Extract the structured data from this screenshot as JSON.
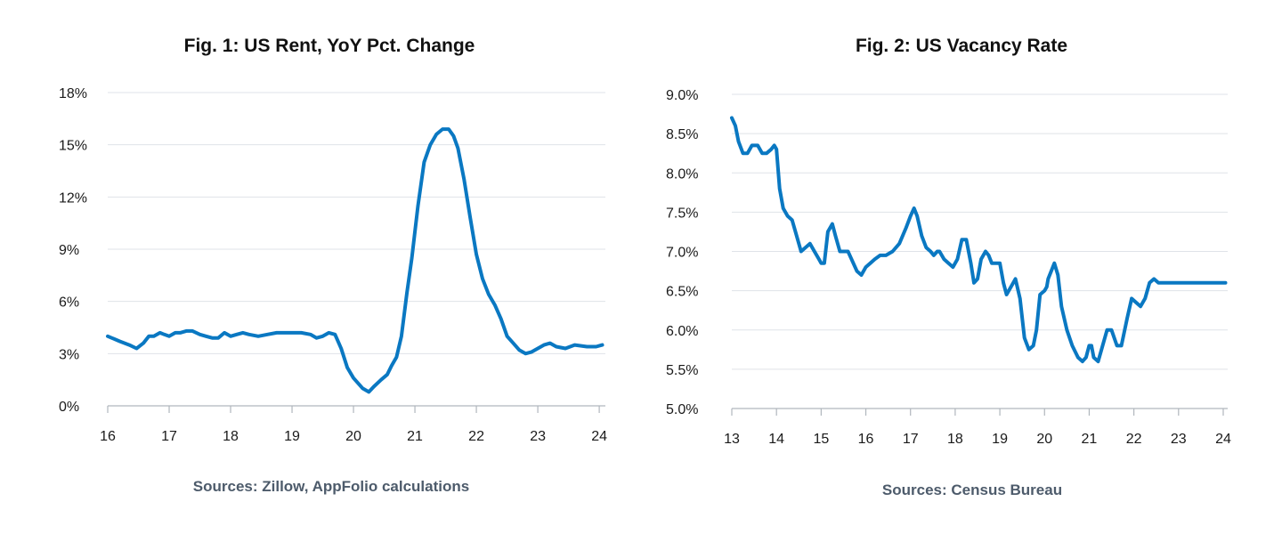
{
  "colors": {
    "line": "#0a78c2",
    "grid": "#dfe3e8",
    "axis": "#b0b6bd"
  },
  "chart_data": [
    {
      "type": "line",
      "title": "Fig. 1: US Rent, YoY Pct. Change",
      "source": "Sources: Zillow, AppFolio calculations",
      "xlabel": "",
      "ylabel": "",
      "grid": true,
      "xlim": [
        16,
        24.1
      ],
      "ylim": [
        0,
        18
      ],
      "x_ticks": [
        {
          "value": 16,
          "label": "16"
        },
        {
          "value": 17,
          "label": "17"
        },
        {
          "value": 18,
          "label": "18"
        },
        {
          "value": 19,
          "label": "19"
        },
        {
          "value": 20,
          "label": "20"
        },
        {
          "value": 21,
          "label": "21"
        },
        {
          "value": 22,
          "label": "22"
        },
        {
          "value": 23,
          "label": "23"
        },
        {
          "value": 24,
          "label": "24"
        }
      ],
      "y_ticks": [
        {
          "value": 0,
          "label": "0%"
        },
        {
          "value": 3,
          "label": "3%"
        },
        {
          "value": 6,
          "label": "6%"
        },
        {
          "value": 9,
          "label": "9%"
        },
        {
          "value": 12,
          "label": "12%"
        },
        {
          "value": 15,
          "label": "15%"
        },
        {
          "value": 18,
          "label": "18%"
        }
      ],
      "series": [
        {
          "x": [
            16.0,
            16.2,
            16.35,
            16.47,
            16.58,
            16.67,
            16.75,
            16.85,
            16.92,
            17.0,
            17.1,
            17.18,
            17.28,
            17.38,
            17.5,
            17.6,
            17.7,
            17.8,
            17.9,
            18.0,
            18.1,
            18.2,
            18.3,
            18.45,
            18.6,
            18.75,
            18.9,
            19.0,
            19.15,
            19.3,
            19.4,
            19.5,
            19.6,
            19.7,
            19.8,
            19.9,
            20.0,
            20.15,
            20.25,
            20.33,
            20.45,
            20.55,
            20.62,
            20.7,
            20.78,
            20.87,
            20.95,
            21.05,
            21.15,
            21.25,
            21.35,
            21.45,
            21.55,
            21.63,
            21.7,
            21.8,
            21.9,
            22.0,
            22.1,
            22.2,
            22.3,
            22.4,
            22.5,
            22.6,
            22.7,
            22.8,
            22.9,
            23.0,
            23.1,
            23.2,
            23.3,
            23.45,
            23.6,
            23.8,
            23.95,
            24.05
          ],
          "values": [
            4.0,
            3.7,
            3.5,
            3.3,
            3.6,
            4.0,
            4.0,
            4.2,
            4.1,
            4.0,
            4.2,
            4.2,
            4.3,
            4.3,
            4.1,
            4.0,
            3.9,
            3.9,
            4.2,
            4.0,
            4.1,
            4.2,
            4.1,
            4.0,
            4.1,
            4.2,
            4.2,
            4.2,
            4.2,
            4.1,
            3.9,
            4.0,
            4.2,
            4.1,
            3.3,
            2.2,
            1.6,
            1.0,
            0.8,
            1.1,
            1.5,
            1.8,
            2.3,
            2.8,
            4.0,
            6.5,
            8.5,
            11.5,
            14.0,
            15.0,
            15.6,
            15.9,
            15.9,
            15.5,
            14.8,
            13.0,
            10.8,
            8.7,
            7.3,
            6.4,
            5.8,
            5.0,
            4.0,
            3.6,
            3.2,
            3.0,
            3.1,
            3.3,
            3.5,
            3.6,
            3.4,
            3.3,
            3.5,
            3.4,
            3.4,
            3.5
          ],
          "display_only_note": ""
        }
      ]
    },
    {
      "type": "line",
      "title": "Fig. 2: US Vacancy Rate",
      "source": "Sources: Census Bureau",
      "xlabel": "",
      "ylabel": "",
      "grid": true,
      "xlim": [
        13,
        24.1
      ],
      "ylim": [
        5.0,
        9.0
      ],
      "x_ticks": [
        {
          "value": 13,
          "label": "13"
        },
        {
          "value": 14,
          "label": "14"
        },
        {
          "value": 15,
          "label": "15"
        },
        {
          "value": 16,
          "label": "16"
        },
        {
          "value": 17,
          "label": "17"
        },
        {
          "value": 18,
          "label": "18"
        },
        {
          "value": 19,
          "label": "19"
        },
        {
          "value": 20,
          "label": "20"
        },
        {
          "value": 21,
          "label": "21"
        },
        {
          "value": 22,
          "label": "22"
        },
        {
          "value": 23,
          "label": "23"
        },
        {
          "value": 24,
          "label": "24"
        }
      ],
      "y_ticks": [
        {
          "value": 5.0,
          "label": "5.0%"
        },
        {
          "value": 5.5,
          "label": "5.5%"
        },
        {
          "value": 6.0,
          "label": "6.0%"
        },
        {
          "value": 6.5,
          "label": "6.5%"
        },
        {
          "value": 7.0,
          "label": "7.0%"
        },
        {
          "value": 7.5,
          "label": "7.5%"
        },
        {
          "value": 8.0,
          "label": "8.0%"
        },
        {
          "value": 8.5,
          "label": "8.5%"
        },
        {
          "value": 9.0,
          "label": "9.0%"
        }
      ],
      "series": [
        {
          "x": [
            13.0,
            13.08,
            13.15,
            13.25,
            13.35,
            13.45,
            13.58,
            13.68,
            13.78,
            13.88,
            13.95,
            14.0,
            14.07,
            14.15,
            14.25,
            14.35,
            14.45,
            14.55,
            14.65,
            14.75,
            14.85,
            14.95,
            15.0,
            15.07,
            15.15,
            15.25,
            15.32,
            15.42,
            15.5,
            15.6,
            15.68,
            15.8,
            15.9,
            16.0,
            16.1,
            16.2,
            16.32,
            16.45,
            16.6,
            16.75,
            16.9,
            17.0,
            17.08,
            17.15,
            17.25,
            17.35,
            17.45,
            17.52,
            17.6,
            17.65,
            17.75,
            17.85,
            17.95,
            18.05,
            18.15,
            18.25,
            18.35,
            18.42,
            18.5,
            18.58,
            18.68,
            18.75,
            18.82,
            18.9,
            19.0,
            19.08,
            19.15,
            19.25,
            19.35,
            19.45,
            19.55,
            19.65,
            19.75,
            19.82,
            19.9,
            20.0,
            20.05,
            20.08,
            20.15,
            20.22,
            20.3,
            20.38,
            20.5,
            20.62,
            20.75,
            20.85,
            20.93,
            21.0,
            21.05,
            21.1,
            21.2,
            21.3,
            21.4,
            21.5,
            21.62,
            21.72,
            21.85,
            21.95,
            22.05,
            22.15,
            22.25,
            22.35,
            22.45,
            22.55,
            22.65,
            22.72,
            22.8,
            22.9,
            22.95,
            23.05,
            23.15,
            23.25,
            23.35,
            23.45,
            23.55,
            23.7,
            23.85,
            24.0,
            24.05
          ],
          "values": [
            8.7,
            8.6,
            8.4,
            8.25,
            8.25,
            8.35,
            8.35,
            8.25,
            8.25,
            8.3,
            8.35,
            8.3,
            7.8,
            7.55,
            7.45,
            7.4,
            7.2,
            7.0,
            7.05,
            7.1,
            7.0,
            6.9,
            6.85,
            6.85,
            7.25,
            7.35,
            7.2,
            7.0,
            7.0,
            7.0,
            6.9,
            6.75,
            6.7,
            6.8,
            6.85,
            6.9,
            6.95,
            6.95,
            7.0,
            7.1,
            7.3,
            7.45,
            7.55,
            7.45,
            7.2,
            7.05,
            7.0,
            6.95,
            7.0,
            7.0,
            6.9,
            6.85,
            6.8,
            6.9,
            7.15,
            7.15,
            6.85,
            6.6,
            6.65,
            6.9,
            7.0,
            6.95,
            6.85,
            6.85,
            6.85,
            6.6,
            6.45,
            6.55,
            6.65,
            6.4,
            5.9,
            5.75,
            5.8,
            6.0,
            6.45,
            6.5,
            6.55,
            6.65,
            6.75,
            6.85,
            6.7,
            6.3,
            6.0,
            5.8,
            5.65,
            5.6,
            5.65,
            5.8,
            5.8,
            5.65,
            5.6,
            5.8,
            6.0,
            6.0,
            5.8,
            5.8,
            6.15,
            6.4,
            6.35,
            6.3,
            6.4,
            6.6,
            6.65,
            6.6,
            6.6,
            6.6,
            6.6,
            6.6,
            6.6,
            6.6,
            6.6,
            6.6,
            6.6,
            6.6,
            6.6,
            6.6,
            6.6,
            6.6,
            6.6
          ]
        }
      ]
    }
  ]
}
